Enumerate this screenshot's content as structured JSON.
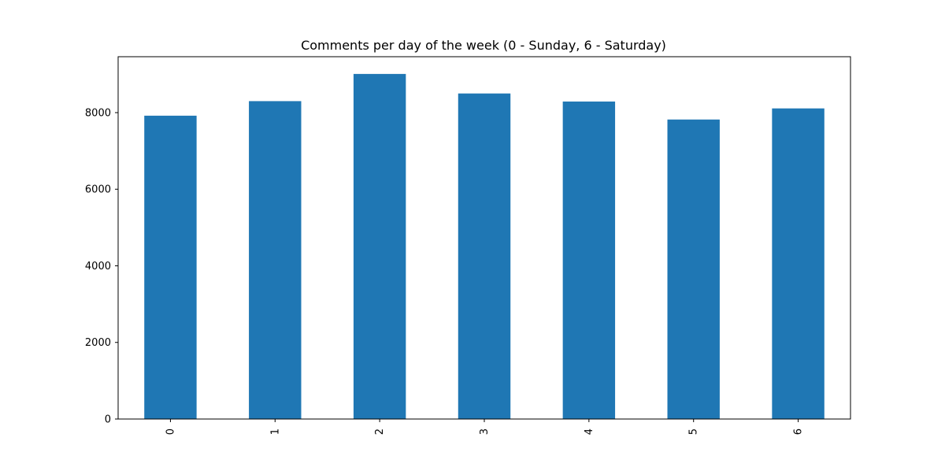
{
  "chart_data": {
    "type": "bar",
    "title": "Comments per day of the week (0 - Sunday, 6 - Saturday)",
    "xlabel": "",
    "ylabel": "",
    "categories": [
      "0",
      "1",
      "2",
      "3",
      "4",
      "5",
      "6"
    ],
    "values": [
      7920,
      8300,
      9010,
      8500,
      8290,
      7820,
      8110
    ],
    "ylim": [
      0,
      9460
    ],
    "yticks": [
      0,
      2000,
      4000,
      6000,
      8000
    ],
    "ytick_labels": [
      "0",
      "2000",
      "4000",
      "6000",
      "8000"
    ],
    "grid": false,
    "legend": "none",
    "x_tick_rotation": "vertical",
    "colors": {
      "bar": "#1f77b4",
      "axes": "#000000",
      "background": "#ffffff"
    }
  }
}
